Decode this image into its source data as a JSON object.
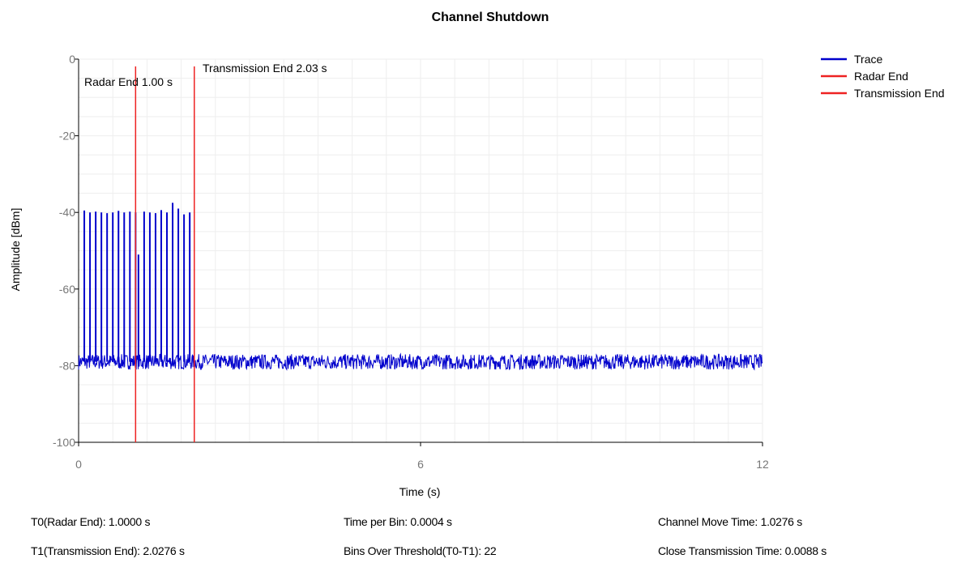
{
  "chart_data": {
    "type": "line",
    "title": "Channel Shutdown",
    "xlabel": "Time (s)",
    "ylabel": "Amplitude [dBm]",
    "xlim": [
      0,
      12
    ],
    "ylim": [
      -100,
      0
    ],
    "x_ticks": [
      "0",
      "6",
      "12"
    ],
    "y_ticks": [
      "0",
      "-20",
      "-40",
      "-60",
      "-80",
      "-100"
    ],
    "grid": true,
    "legend_position": "top-right",
    "series": [
      {
        "name": "Trace",
        "color": "#0000cc",
        "noise_floor": -79,
        "noise_range": [
          -81,
          -77
        ],
        "pulses": [
          {
            "x": 0.1,
            "y": -39.5
          },
          {
            "x": 0.2,
            "y": -40.0
          },
          {
            "x": 0.3,
            "y": -39.8
          },
          {
            "x": 0.4,
            "y": -40.0
          },
          {
            "x": 0.5,
            "y": -40.2
          },
          {
            "x": 0.6,
            "y": -40.0
          },
          {
            "x": 0.7,
            "y": -39.6
          },
          {
            "x": 0.8,
            "y": -40.0
          },
          {
            "x": 0.9,
            "y": -39.8
          },
          {
            "x": 1.0,
            "y": -40.0
          },
          {
            "x": 1.05,
            "y": -51.0
          },
          {
            "x": 1.15,
            "y": -39.8
          },
          {
            "x": 1.25,
            "y": -40.0
          },
          {
            "x": 1.35,
            "y": -40.2
          },
          {
            "x": 1.45,
            "y": -39.4
          },
          {
            "x": 1.55,
            "y": -40.0
          },
          {
            "x": 1.65,
            "y": -37.5
          },
          {
            "x": 1.75,
            "y": -39.0
          },
          {
            "x": 1.85,
            "y": -40.5
          },
          {
            "x": 1.95,
            "y": -40.0
          }
        ]
      },
      {
        "name": "Radar End",
        "color": "#ee2222",
        "x": 1.0
      },
      {
        "name": "Transmission End",
        "color": "#ee2222",
        "x": 2.03
      }
    ],
    "annotations": [
      {
        "text": "Radar End 1.00 s",
        "x": 1.0
      },
      {
        "text": "Transmission End 2.03 s",
        "x": 2.03
      }
    ]
  },
  "stats": {
    "t0": "T0(Radar End): 1.0000 s",
    "t1": "T1(Transmission End): 2.0276 s",
    "time_per_bin": "Time per Bin: 0.0004 s",
    "bins_over_threshold": "Bins Over Threshold(T0-T1): 22",
    "channel_move_time": "Channel Move Time: 1.0276 s",
    "close_transmission_time": "Close Transmission Time: 0.0088 s"
  }
}
